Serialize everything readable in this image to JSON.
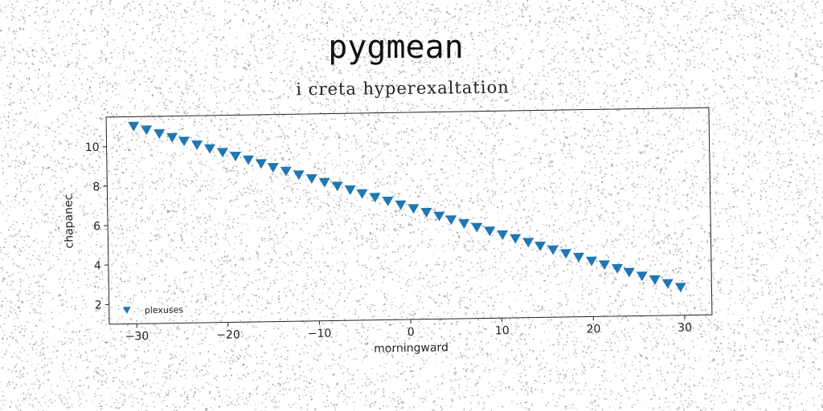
{
  "chart_data": {
    "type": "scatter",
    "title": "pygmean",
    "subtitle": "i creta hyperexaltation",
    "xlabel": "morningward",
    "ylabel": "chapanec",
    "xlim": [
      -33,
      33
    ],
    "ylim": [
      1.0,
      11.5
    ],
    "xticks": [
      -30,
      -20,
      -10,
      0,
      10,
      20,
      30
    ],
    "yticks": [
      2,
      4,
      6,
      8,
      10
    ],
    "grid": false,
    "legend_position": "lower-left",
    "marker": "triangle-down",
    "color": "#1f77b4",
    "series": [
      {
        "name": "plexuses",
        "x": [
          -30.0,
          -28.6,
          -27.2,
          -25.8,
          -24.5,
          -23.1,
          -21.7,
          -20.3,
          -18.9,
          -17.5,
          -16.1,
          -14.8,
          -13.4,
          -12.0,
          -10.6,
          -9.2,
          -7.8,
          -6.4,
          -5.1,
          -3.7,
          -2.3,
          -0.9,
          0.5,
          1.9,
          3.3,
          4.6,
          6.0,
          7.4,
          8.8,
          10.2,
          11.6,
          13.0,
          14.3,
          15.7,
          17.1,
          18.5,
          19.9,
          21.3,
          22.7,
          24.0,
          25.4,
          26.8,
          28.2,
          29.6
        ],
        "y": [
          11.0,
          10.8,
          10.6,
          10.4,
          10.2,
          10.0,
          9.8,
          9.6,
          9.4,
          9.2,
          9.0,
          8.8,
          8.6,
          8.4,
          8.2,
          8.0,
          7.8,
          7.6,
          7.4,
          7.2,
          7.0,
          6.8,
          6.6,
          6.4,
          6.2,
          6.0,
          5.8,
          5.6,
          5.4,
          5.2,
          5.0,
          4.8,
          4.6,
          4.4,
          4.2,
          4.0,
          3.8,
          3.6,
          3.4,
          3.2,
          3.0,
          2.8,
          2.6,
          2.4
        ]
      }
    ]
  }
}
